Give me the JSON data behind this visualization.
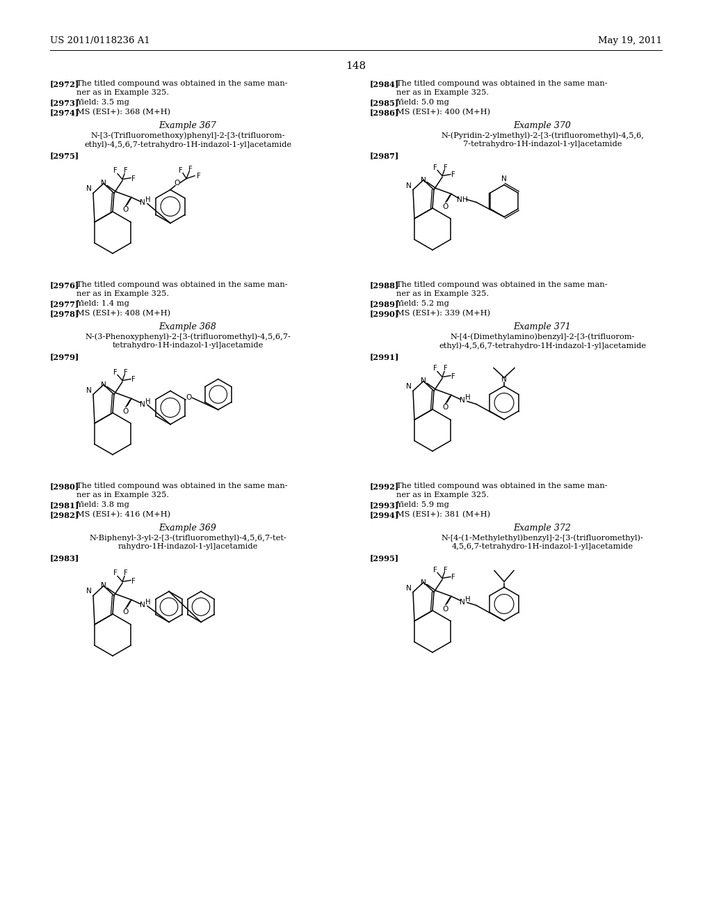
{
  "bg_color": "#ffffff",
  "header_left": "US 2011/0118236 A1",
  "header_right": "May 19, 2011",
  "page_number": "148",
  "text_color": "#000000",
  "left_blocks": [
    {
      "refs": [
        {
          "num": "2972",
          "text": "The titled compound was obtained in the same man-\nner as in Example 325."
        },
        {
          "num": "2973",
          "text": "Yield: 3.5 mg"
        },
        {
          "num": "2974",
          "text": "MS (ESI+): 368 (M+H)"
        }
      ],
      "example_num": "367",
      "example_line1": "N-[3-(Trifluoromethoxy)phenyl]-2-[3-(trifluorom-",
      "example_line2": "ethyl)-4,5,6,7-tetrahydro-1H-indazol-1-yl]acetamide",
      "struct_ref": "2975"
    },
    {
      "refs": [
        {
          "num": "2976",
          "text": "The titled compound was obtained in the same man-\nner as in Example 325."
        },
        {
          "num": "2977",
          "text": "Yield: 1.4 mg"
        },
        {
          "num": "2978",
          "text": "MS (ESI+): 408 (M+H)"
        }
      ],
      "example_num": "368",
      "example_line1": "N-(3-Phenoxyphenyl)-2-[3-(trifluoromethyl)-4,5,6,7-",
      "example_line2": "tetrahydro-1H-indazol-1-yl]acetamide",
      "struct_ref": "2979"
    },
    {
      "refs": [
        {
          "num": "2980",
          "text": "The titled compound was obtained in the same man-\nner as in Example 325."
        },
        {
          "num": "2981",
          "text": "Yield: 3.8 mg"
        },
        {
          "num": "2982",
          "text": "MS (ESI+): 416 (M+H)"
        }
      ],
      "example_num": "369",
      "example_line1": "N-Biphenyl-3-yl-2-[3-(trifluoromethyl)-4,5,6,7-tet-",
      "example_line2": "rahydro-1H-indazol-1-yl]acetamide",
      "struct_ref": "2983"
    }
  ],
  "right_blocks": [
    {
      "refs": [
        {
          "num": "2984",
          "text": "The titled compound was obtained in the same man-\nner as in Example 325."
        },
        {
          "num": "2985",
          "text": "Yield: 5.0 mg"
        },
        {
          "num": "2986",
          "text": "MS (ESI+): 400 (M+H)"
        }
      ],
      "example_num": "370",
      "example_line1": "N-(Pyridin-2-ylmethyl)-2-[3-(trifluoromethyl)-4,5,6,",
      "example_line2": "7-tetrahydro-1H-indazol-1-yl]acetamide",
      "struct_ref": "2987"
    },
    {
      "refs": [
        {
          "num": "2988",
          "text": "The titled compound was obtained in the same man-\nner as in Example 325."
        },
        {
          "num": "2989",
          "text": "Yield: 5.2 mg"
        },
        {
          "num": "2990",
          "text": "MS (ESI+): 339 (M+H)"
        }
      ],
      "example_num": "371",
      "example_line1": "N-[4-(Dimethylamino)benzyl]-2-[3-(trifluorom-",
      "example_line2": "ethyl)-4,5,6,7-tetrahydro-1H-indazol-1-yl]acetamide",
      "struct_ref": "2991"
    },
    {
      "refs": [
        {
          "num": "2992",
          "text": "The titled compound was obtained in the same man-\nner as in Example 325."
        },
        {
          "num": "2993",
          "text": "Yield: 5.9 mg"
        },
        {
          "num": "2994",
          "text": "MS (ESI+): 381 (M+H)"
        }
      ],
      "example_num": "372",
      "example_line1": "N-[4-(1-Methylethyl)benzyl]-2-[3-(trifluoromethyl)-",
      "example_line2": "4,5,6,7-tetrahydro-1H-indazol-1-yl]acetamide",
      "struct_ref": "2995"
    }
  ]
}
